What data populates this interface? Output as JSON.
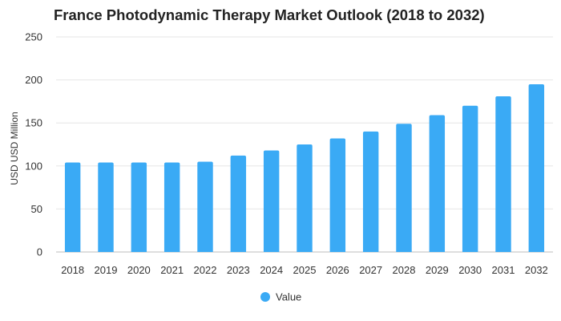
{
  "chart_data": {
    "type": "bar",
    "title": "France Photodynamic Therapy Market Outlook (2018 to 2032)",
    "xlabel": "",
    "ylabel": "USD USD Million",
    "ylim": [
      0,
      250
    ],
    "yticks": [
      0,
      50,
      100,
      150,
      200,
      250
    ],
    "grid": true,
    "legend_position": "bottom-center",
    "categories": [
      "2018",
      "2019",
      "2020",
      "2021",
      "2022",
      "2023",
      "2024",
      "2025",
      "2026",
      "2027",
      "2028",
      "2029",
      "2030",
      "2031",
      "2032"
    ],
    "series": [
      {
        "name": "Value",
        "color": "#3aaaf5",
        "values": [
          104,
          104,
          104,
          104,
          105,
          112,
          118,
          125,
          132,
          140,
          149,
          159,
          170,
          181,
          195
        ]
      }
    ]
  }
}
